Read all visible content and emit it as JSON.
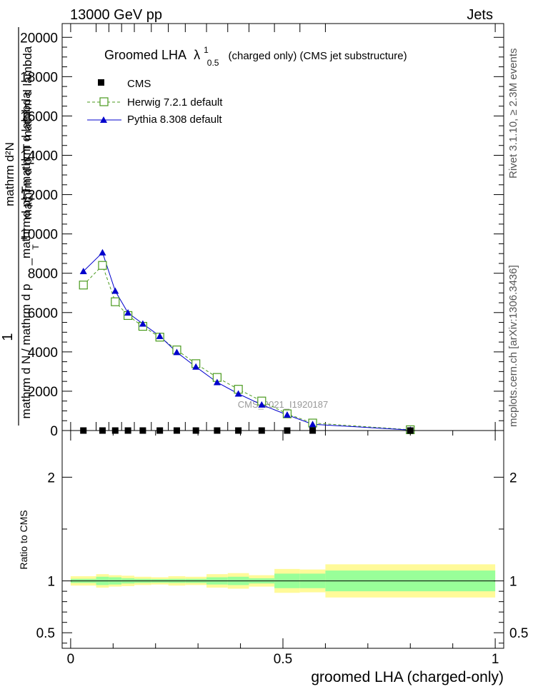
{
  "header": {
    "left": "13000 GeV pp",
    "right": "Jets"
  },
  "side_labels": {
    "rivet": "Rivet 3.1.10, ≥ 2.3M events",
    "mcplots": "mcplots.cern.ch [arXiv:1306.3436]"
  },
  "watermark": "CMS_2021_I1920187",
  "chart_data": [
    {
      "type": "line",
      "title": {
        "main": "Groomed LHA",
        "lambda": "λ",
        "sup": "1",
        "sub": "0.5",
        "suffix": "(charged only) (CMS jet substructure)"
      },
      "ylabel": {
        "num_top": "mathrm d²N",
        "num_bottom": "mathrm d p_T mathrm d lambda",
        "one": "1",
        "den_top": "mathrm d N / mathrm d p",
        "den_sub": "T",
        "den_end": "_mathrmd p_Tmathrm d lambda"
      },
      "xlim": [
        -0.02,
        1.02
      ],
      "ylim": [
        0,
        20700
      ],
      "yticks": [
        0,
        2000,
        4000,
        6000,
        8000,
        10000,
        12000,
        14000,
        16000,
        18000,
        20000
      ],
      "ytick_labels": [
        "0",
        "2000",
        "4000",
        "6000",
        "8000",
        "10000",
        "12000",
        "14000",
        "16000",
        "18000",
        "20000"
      ],
      "bin_edges": [
        0,
        0.06,
        0.09,
        0.12,
        0.15,
        0.19,
        0.23,
        0.27,
        0.32,
        0.37,
        0.42,
        0.48,
        0.54,
        0.6,
        1.0
      ],
      "legend": {
        "position": "top-left",
        "entries": [
          "CMS",
          "Herwig 7.2.1 default",
          "Pythia 8.308 default"
        ]
      },
      "series": [
        {
          "name": "CMS",
          "marker": "square",
          "color": "#000000",
          "x": [
            0.03,
            0.075,
            0.105,
            0.135,
            0.17,
            0.21,
            0.25,
            0.295,
            0.345,
            0.395,
            0.45,
            0.51,
            0.57,
            0.8
          ],
          "y": [
            0,
            0,
            0,
            0,
            0,
            0,
            0,
            0,
            0,
            0,
            0,
            0,
            0,
            0
          ]
        },
        {
          "name": "Herwig 7.2.1 default",
          "marker": "open-square",
          "color": "#4a9a1e",
          "x": [
            0.03,
            0.075,
            0.105,
            0.135,
            0.17,
            0.21,
            0.25,
            0.295,
            0.345,
            0.395,
            0.45,
            0.51,
            0.57,
            0.8
          ],
          "y": [
            7400,
            8400,
            6550,
            5850,
            5300,
            4750,
            4100,
            3400,
            2700,
            2100,
            1500,
            850,
            380,
            40
          ]
        },
        {
          "name": "Pythia 8.308 default",
          "marker": "triangle",
          "color": "#0000cc",
          "x": [
            0.03,
            0.075,
            0.105,
            0.135,
            0.17,
            0.21,
            0.25,
            0.295,
            0.345,
            0.395,
            0.45,
            0.51,
            0.57,
            0.8
          ],
          "y": [
            8100,
            9050,
            7100,
            5990,
            5430,
            4800,
            3980,
            3240,
            2450,
            1870,
            1310,
            800,
            320,
            30
          ]
        }
      ]
    },
    {
      "type": "area",
      "ylabel": "Ratio to CMS",
      "xlabel": "groomed LHA (charged-only)",
      "xlim": [
        -0.02,
        1.02
      ],
      "ylim": [
        0.35,
        2.45
      ],
      "yticks": [
        0.5,
        1,
        2
      ],
      "ytick_labels": [
        "0.5",
        "1",
        "2"
      ],
      "xticks": [
        0,
        0.5,
        1
      ],
      "xtick_labels": [
        "0",
        "0.5",
        "1"
      ],
      "bin_edges": [
        0,
        0.06,
        0.09,
        0.12,
        0.15,
        0.19,
        0.23,
        0.27,
        0.32,
        0.37,
        0.42,
        0.48,
        0.54,
        0.6,
        1.0
      ],
      "bands": {
        "outer_color": "#fffa99",
        "inner_color": "#99ff99",
        "outer_halfwidth": [
          0.045,
          0.065,
          0.055,
          0.05,
          0.04,
          0.035,
          0.045,
          0.04,
          0.065,
          0.075,
          0.055,
          0.115,
          0.11,
          0.16
        ],
        "inner_halfwidth": [
          0.02,
          0.04,
          0.035,
          0.025,
          0.02,
          0.018,
          0.02,
          0.02,
          0.035,
          0.04,
          0.025,
          0.07,
          0.07,
          0.1
        ]
      },
      "reference_line": 1
    }
  ]
}
